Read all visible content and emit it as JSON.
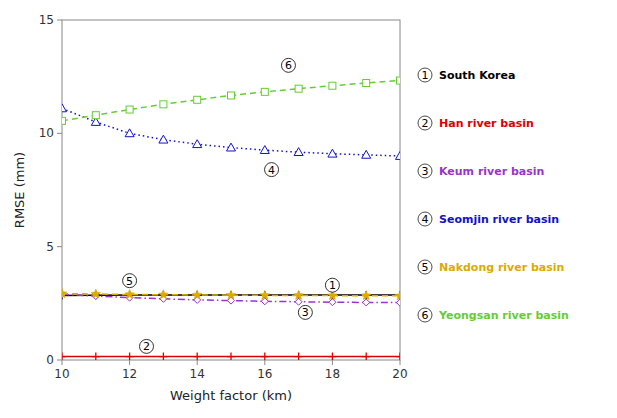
{
  "chart_data": {
    "type": "line",
    "xlabel": "Weight factor (km)",
    "ylabel": "RMSE (mm)",
    "x": [
      10,
      11,
      12,
      13,
      14,
      15,
      16,
      17,
      18,
      19,
      20
    ],
    "series": [
      {
        "name": "South Korea",
        "color": "#000000",
        "marker": "plus",
        "line_style": "solid",
        "values": [
          2.85,
          2.86,
          2.87,
          2.87,
          2.87,
          2.87,
          2.87,
          2.87,
          2.87,
          2.87,
          2.87
        ]
      },
      {
        "name": "Han river basin",
        "color": "#dd0000",
        "marker": "plus",
        "line_style": "solid",
        "values": [
          0.15,
          0.15,
          0.15,
          0.15,
          0.15,
          0.15,
          0.15,
          0.15,
          0.15,
          0.15,
          0.15
        ]
      },
      {
        "name": "Keum river basin",
        "color": "#9933cc",
        "marker": "diamond",
        "line_style": "dashdot",
        "values": [
          2.9,
          2.82,
          2.75,
          2.7,
          2.65,
          2.62,
          2.59,
          2.57,
          2.55,
          2.54,
          2.53
        ]
      },
      {
        "name": "Seomjin river basin",
        "color": "#1111cc",
        "marker": "triangle",
        "line_style": "dotted",
        "values": [
          11.1,
          10.5,
          10.0,
          9.72,
          9.52,
          9.37,
          9.26,
          9.17,
          9.1,
          9.05,
          9.0
        ]
      },
      {
        "name": "Nakdong river basin",
        "color": "#ddaa00",
        "marker": "star",
        "line_style": "dashed",
        "values": [
          2.93,
          2.91,
          2.89,
          2.88,
          2.87,
          2.86,
          2.85,
          2.85,
          2.84,
          2.84,
          2.83
        ]
      },
      {
        "name": "Yeongsan river basin",
        "color": "#66cc33",
        "marker": "square",
        "line_style": "dashed",
        "values": [
          10.55,
          10.8,
          11.05,
          11.28,
          11.48,
          11.67,
          11.83,
          11.97,
          12.1,
          12.22,
          12.33
        ]
      }
    ],
    "annotations": [
      {
        "text": "1",
        "x": 18.0,
        "y": 3.3
      },
      {
        "text": "2",
        "x": 12.5,
        "y": 0.6
      },
      {
        "text": "3",
        "x": 17.2,
        "y": 2.1
      },
      {
        "text": "4",
        "x": 16.2,
        "y": 8.4
      },
      {
        "text": "5",
        "x": 12.0,
        "y": 3.5
      },
      {
        "text": "6",
        "x": 16.7,
        "y": 13.0
      }
    ],
    "xlim": [
      10,
      20
    ],
    "ylim": [
      0,
      15
    ],
    "xticks": [
      10,
      12,
      14,
      16,
      18,
      20
    ],
    "yticks": [
      0,
      5,
      10,
      15
    ],
    "grid": false,
    "legend": "right"
  }
}
